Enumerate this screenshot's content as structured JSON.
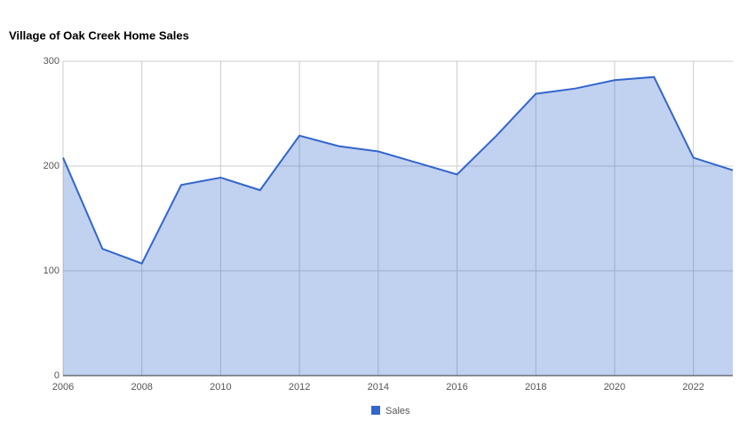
{
  "chart_data": {
    "type": "area",
    "title": "Village of Oak Creek Home Sales",
    "x": [
      2006,
      2007,
      2008,
      2009,
      2010,
      2011,
      2012,
      2013,
      2014,
      2015,
      2016,
      2017,
      2018,
      2019,
      2020,
      2021,
      2022,
      2023
    ],
    "series": [
      {
        "name": "Sales",
        "color": "#3366cc",
        "values": [
          208,
          121,
          107,
          182,
          189,
          177,
          229,
          219,
          214,
          203,
          192,
          229,
          269,
          274,
          282,
          285,
          208,
          196
        ]
      }
    ],
    "xlim": [
      2006,
      2023
    ],
    "xticks": [
      2006,
      2008,
      2010,
      2012,
      2014,
      2016,
      2018,
      2020,
      2022
    ],
    "ylim": [
      0,
      300
    ],
    "yticks": [
      0,
      100,
      200,
      300
    ],
    "grid": true,
    "legend": "bottom"
  }
}
